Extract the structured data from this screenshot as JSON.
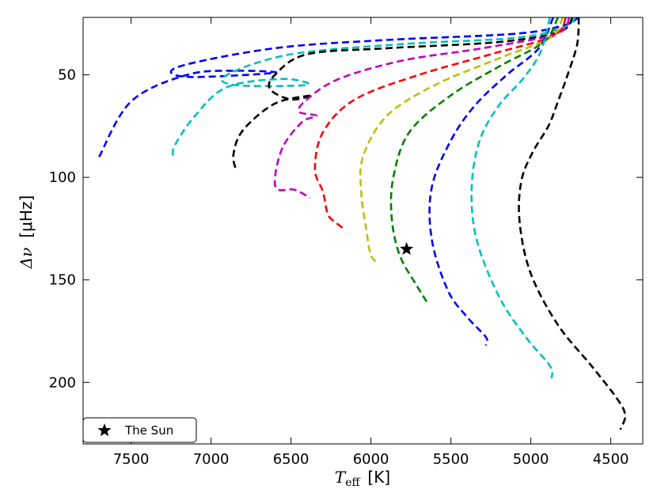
{
  "chart_data": {
    "type": "line",
    "title": "",
    "xlabel": {
      "symbol": "T",
      "subscript": "eff",
      "unit": "[K]"
    },
    "ylabel": {
      "symbol": "Δν",
      "unit": "[μHz]"
    },
    "xlim": [
      7800,
      4300
    ],
    "ylim": [
      230,
      22
    ],
    "x_ticks": [
      7500,
      7000,
      6500,
      6000,
      5500,
      5000,
      4500
    ],
    "y_ticks": [
      50,
      100,
      150,
      200
    ],
    "grid": false,
    "line_style": "dashed",
    "series": [
      {
        "color": "#0000ff",
        "points": [
          [
            4700,
            22
          ],
          [
            4800,
            26
          ],
          [
            5100,
            30
          ],
          [
            5900,
            33
          ],
          [
            6600,
            37
          ],
          [
            7200,
            46
          ],
          [
            7150,
            51
          ],
          [
            6600,
            49
          ],
          [
            6850,
            48
          ],
          [
            7150,
            50
          ],
          [
            7500,
            63
          ],
          [
            7700,
            90
          ]
        ]
      },
      {
        "color": "#00bfbf",
        "points": [
          [
            4720,
            22
          ],
          [
            4800,
            27
          ],
          [
            5100,
            32
          ],
          [
            5800,
            35
          ],
          [
            6500,
            40
          ],
          [
            6900,
            50
          ],
          [
            6850,
            55
          ],
          [
            6400,
            55
          ],
          [
            6550,
            52
          ],
          [
            6900,
            56
          ],
          [
            7100,
            70
          ],
          [
            7230,
            85
          ],
          [
            7230,
            91
          ]
        ]
      },
      {
        "color": "#000000",
        "points": [
          [
            4740,
            22
          ],
          [
            4820,
            29
          ],
          [
            5200,
            34
          ],
          [
            5900,
            37
          ],
          [
            6400,
            40
          ],
          [
            6600,
            50
          ],
          [
            6630,
            57
          ],
          [
            6500,
            62
          ],
          [
            6370,
            60
          ],
          [
            6600,
            64
          ],
          [
            6800,
            77
          ],
          [
            6860,
            89
          ],
          [
            6840,
            97
          ]
        ]
      },
      {
        "color": "#bf00bf",
        "points": [
          [
            4760,
            22
          ],
          [
            4840,
            30
          ],
          [
            5300,
            37
          ],
          [
            5800,
            43
          ],
          [
            6200,
            52
          ],
          [
            6400,
            62
          ],
          [
            6450,
            68
          ],
          [
            6340,
            70
          ],
          [
            6430,
            73
          ],
          [
            6550,
            85
          ],
          [
            6600,
            100
          ],
          [
            6580,
            106
          ],
          [
            6480,
            106
          ],
          [
            6380,
            110
          ]
        ]
      },
      {
        "color": "#ff0000",
        "points": [
          [
            4780,
            22
          ],
          [
            4860,
            31
          ],
          [
            5250,
            40
          ],
          [
            5700,
            50
          ],
          [
            6100,
            62
          ],
          [
            6300,
            78
          ],
          [
            6350,
            96
          ],
          [
            6300,
            107
          ],
          [
            6270,
            118
          ],
          [
            6220,
            122
          ],
          [
            6170,
            125
          ]
        ]
      },
      {
        "color": "#bfbf00",
        "points": [
          [
            4800,
            22
          ],
          [
            4880,
            32
          ],
          [
            5200,
            42
          ],
          [
            5600,
            55
          ],
          [
            5900,
            70
          ],
          [
            6050,
            90
          ],
          [
            6060,
            108
          ],
          [
            6030,
            125
          ],
          [
            6000,
            138
          ],
          [
            5950,
            142
          ]
        ]
      },
      {
        "color": "#008000",
        "points": [
          [
            4830,
            22
          ],
          [
            4920,
            34
          ],
          [
            5200,
            46
          ],
          [
            5500,
            60
          ],
          [
            5760,
            78
          ],
          [
            5860,
            100
          ],
          [
            5870,
            120
          ],
          [
            5820,
            138
          ],
          [
            5720,
            152
          ],
          [
            5640,
            162
          ]
        ]
      },
      {
        "color": "#0000ff",
        "points": [
          [
            4860,
            22
          ],
          [
            4950,
            37
          ],
          [
            5150,
            50
          ],
          [
            5350,
            65
          ],
          [
            5500,
            82
          ],
          [
            5620,
            105
          ],
          [
            5620,
            130
          ],
          [
            5520,
            155
          ],
          [
            5400,
            168
          ],
          [
            5280,
            178
          ],
          [
            5280,
            182
          ]
        ]
      },
      {
        "color": "#00bfbf",
        "points": [
          [
            4880,
            22
          ],
          [
            4940,
            39
          ],
          [
            5050,
            52
          ],
          [
            5200,
            65
          ],
          [
            5320,
            82
          ],
          [
            5370,
            105
          ],
          [
            5340,
            130
          ],
          [
            5200,
            158
          ],
          [
            5030,
            178
          ],
          [
            4880,
            192
          ],
          [
            4870,
            198
          ]
        ]
      },
      {
        "color": "#000000",
        "points": [
          [
            4700,
            22
          ],
          [
            4710,
            35
          ],
          [
            4770,
            50
          ],
          [
            4830,
            63
          ],
          [
            4890,
            75
          ],
          [
            4990,
            88
          ],
          [
            5060,
            102
          ],
          [
            5070,
            122
          ],
          [
            5000,
            147
          ],
          [
            4830,
            172
          ],
          [
            4620,
            192
          ],
          [
            4460,
            208
          ],
          [
            4410,
            216
          ],
          [
            4440,
            223
          ]
        ]
      }
    ],
    "markers": [
      {
        "label": "The Sun",
        "symbol": "star",
        "color": "#000000",
        "x": 5777,
        "y": 135
      }
    ],
    "legend": {
      "position": "lower-left",
      "entries": [
        {
          "label": "The Sun",
          "symbol": "star"
        }
      ]
    }
  }
}
